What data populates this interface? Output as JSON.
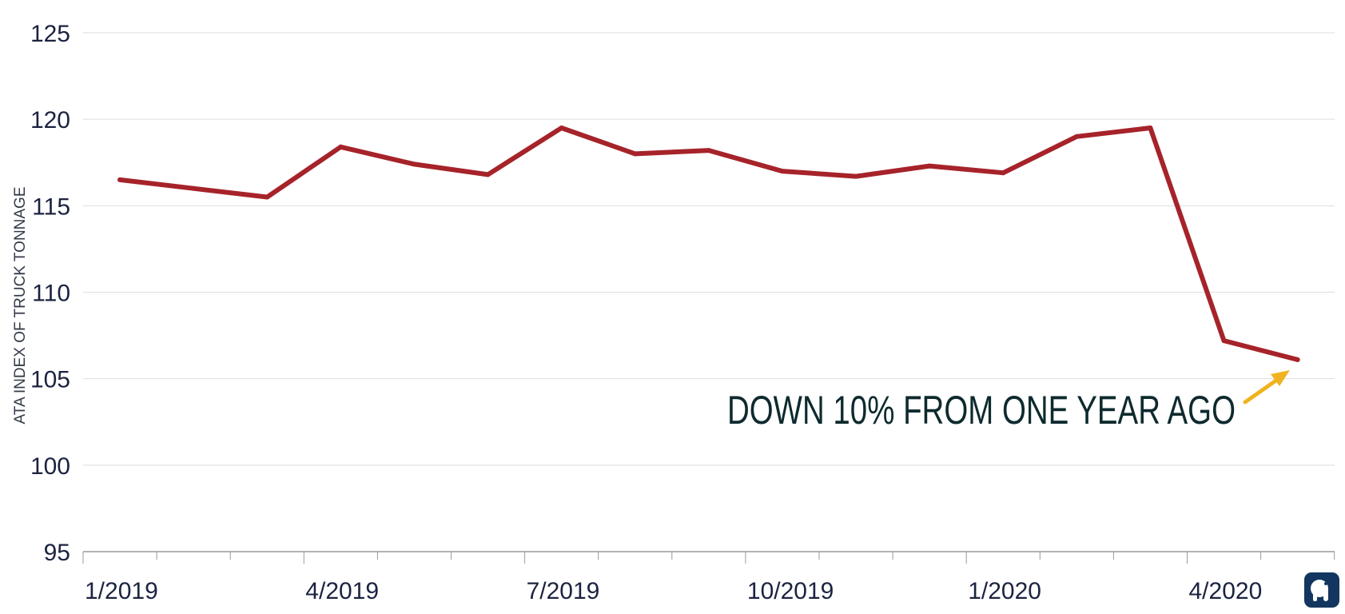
{
  "chart_data": {
    "type": "line",
    "title": "",
    "xlabel": "",
    "ylabel": "ATA INDEX OF TRUCK TONNAGE",
    "ylim": [
      95,
      125
    ],
    "yticks": [
      "95",
      "100",
      "105",
      "110",
      "115",
      "120",
      "125"
    ],
    "xtick_labels": [
      "1/2019",
      "4/2019",
      "7/2019",
      "10/2019",
      "1/2020",
      "4/2020"
    ],
    "grid": true,
    "x": [
      "2019-01",
      "2019-02",
      "2019-03",
      "2019-04",
      "2019-05",
      "2019-06",
      "2019-07",
      "2019-08",
      "2019-09",
      "2019-10",
      "2019-11",
      "2019-12",
      "2020-01",
      "2020-02",
      "2020-03",
      "2020-04",
      "2020-05"
    ],
    "series": [
      {
        "color": "#a6232a",
        "values": [
          116.5,
          116.0,
          115.5,
          118.4,
          117.4,
          116.8,
          119.5,
          118.0,
          118.2,
          117.0,
          116.7,
          117.3,
          116.9,
          119.0,
          119.5,
          107.2,
          106.1
        ]
      }
    ],
    "annotation": {
      "text": "DOWN 10% FROM ONE YEAR AGO",
      "arrow_color": "#f0b31f"
    }
  },
  "logo": {
    "icon": "elephant-icon",
    "color": "#12365f"
  }
}
